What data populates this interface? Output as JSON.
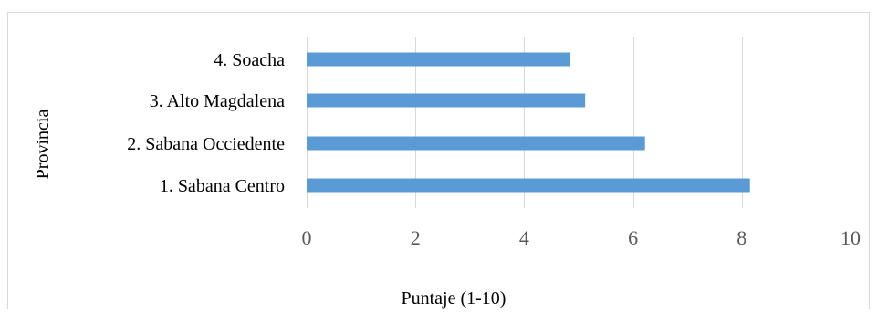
{
  "chart_data": {
    "type": "bar",
    "orientation": "horizontal",
    "title": "",
    "xlabel": "Puntaje (1-10)",
    "ylabel": "Provincia",
    "categories": [
      "1. Sabana Centro",
      "2. Sabana Occiedente",
      "3. Alto Magdalena",
      "4. Soacha"
    ],
    "values": [
      8.15,
      6.22,
      5.12,
      4.85
    ],
    "xlim": [
      0,
      10
    ],
    "xticks": [
      "0",
      "2",
      "4",
      "6",
      "8",
      "10"
    ],
    "grid": "vertical",
    "legend": "none",
    "colors": {
      "bar": "#5b9bd5",
      "grid": "#d9d9d9",
      "frame": "#d9d9d9",
      "text": "#000000",
      "tick_text": "#595959"
    }
  }
}
